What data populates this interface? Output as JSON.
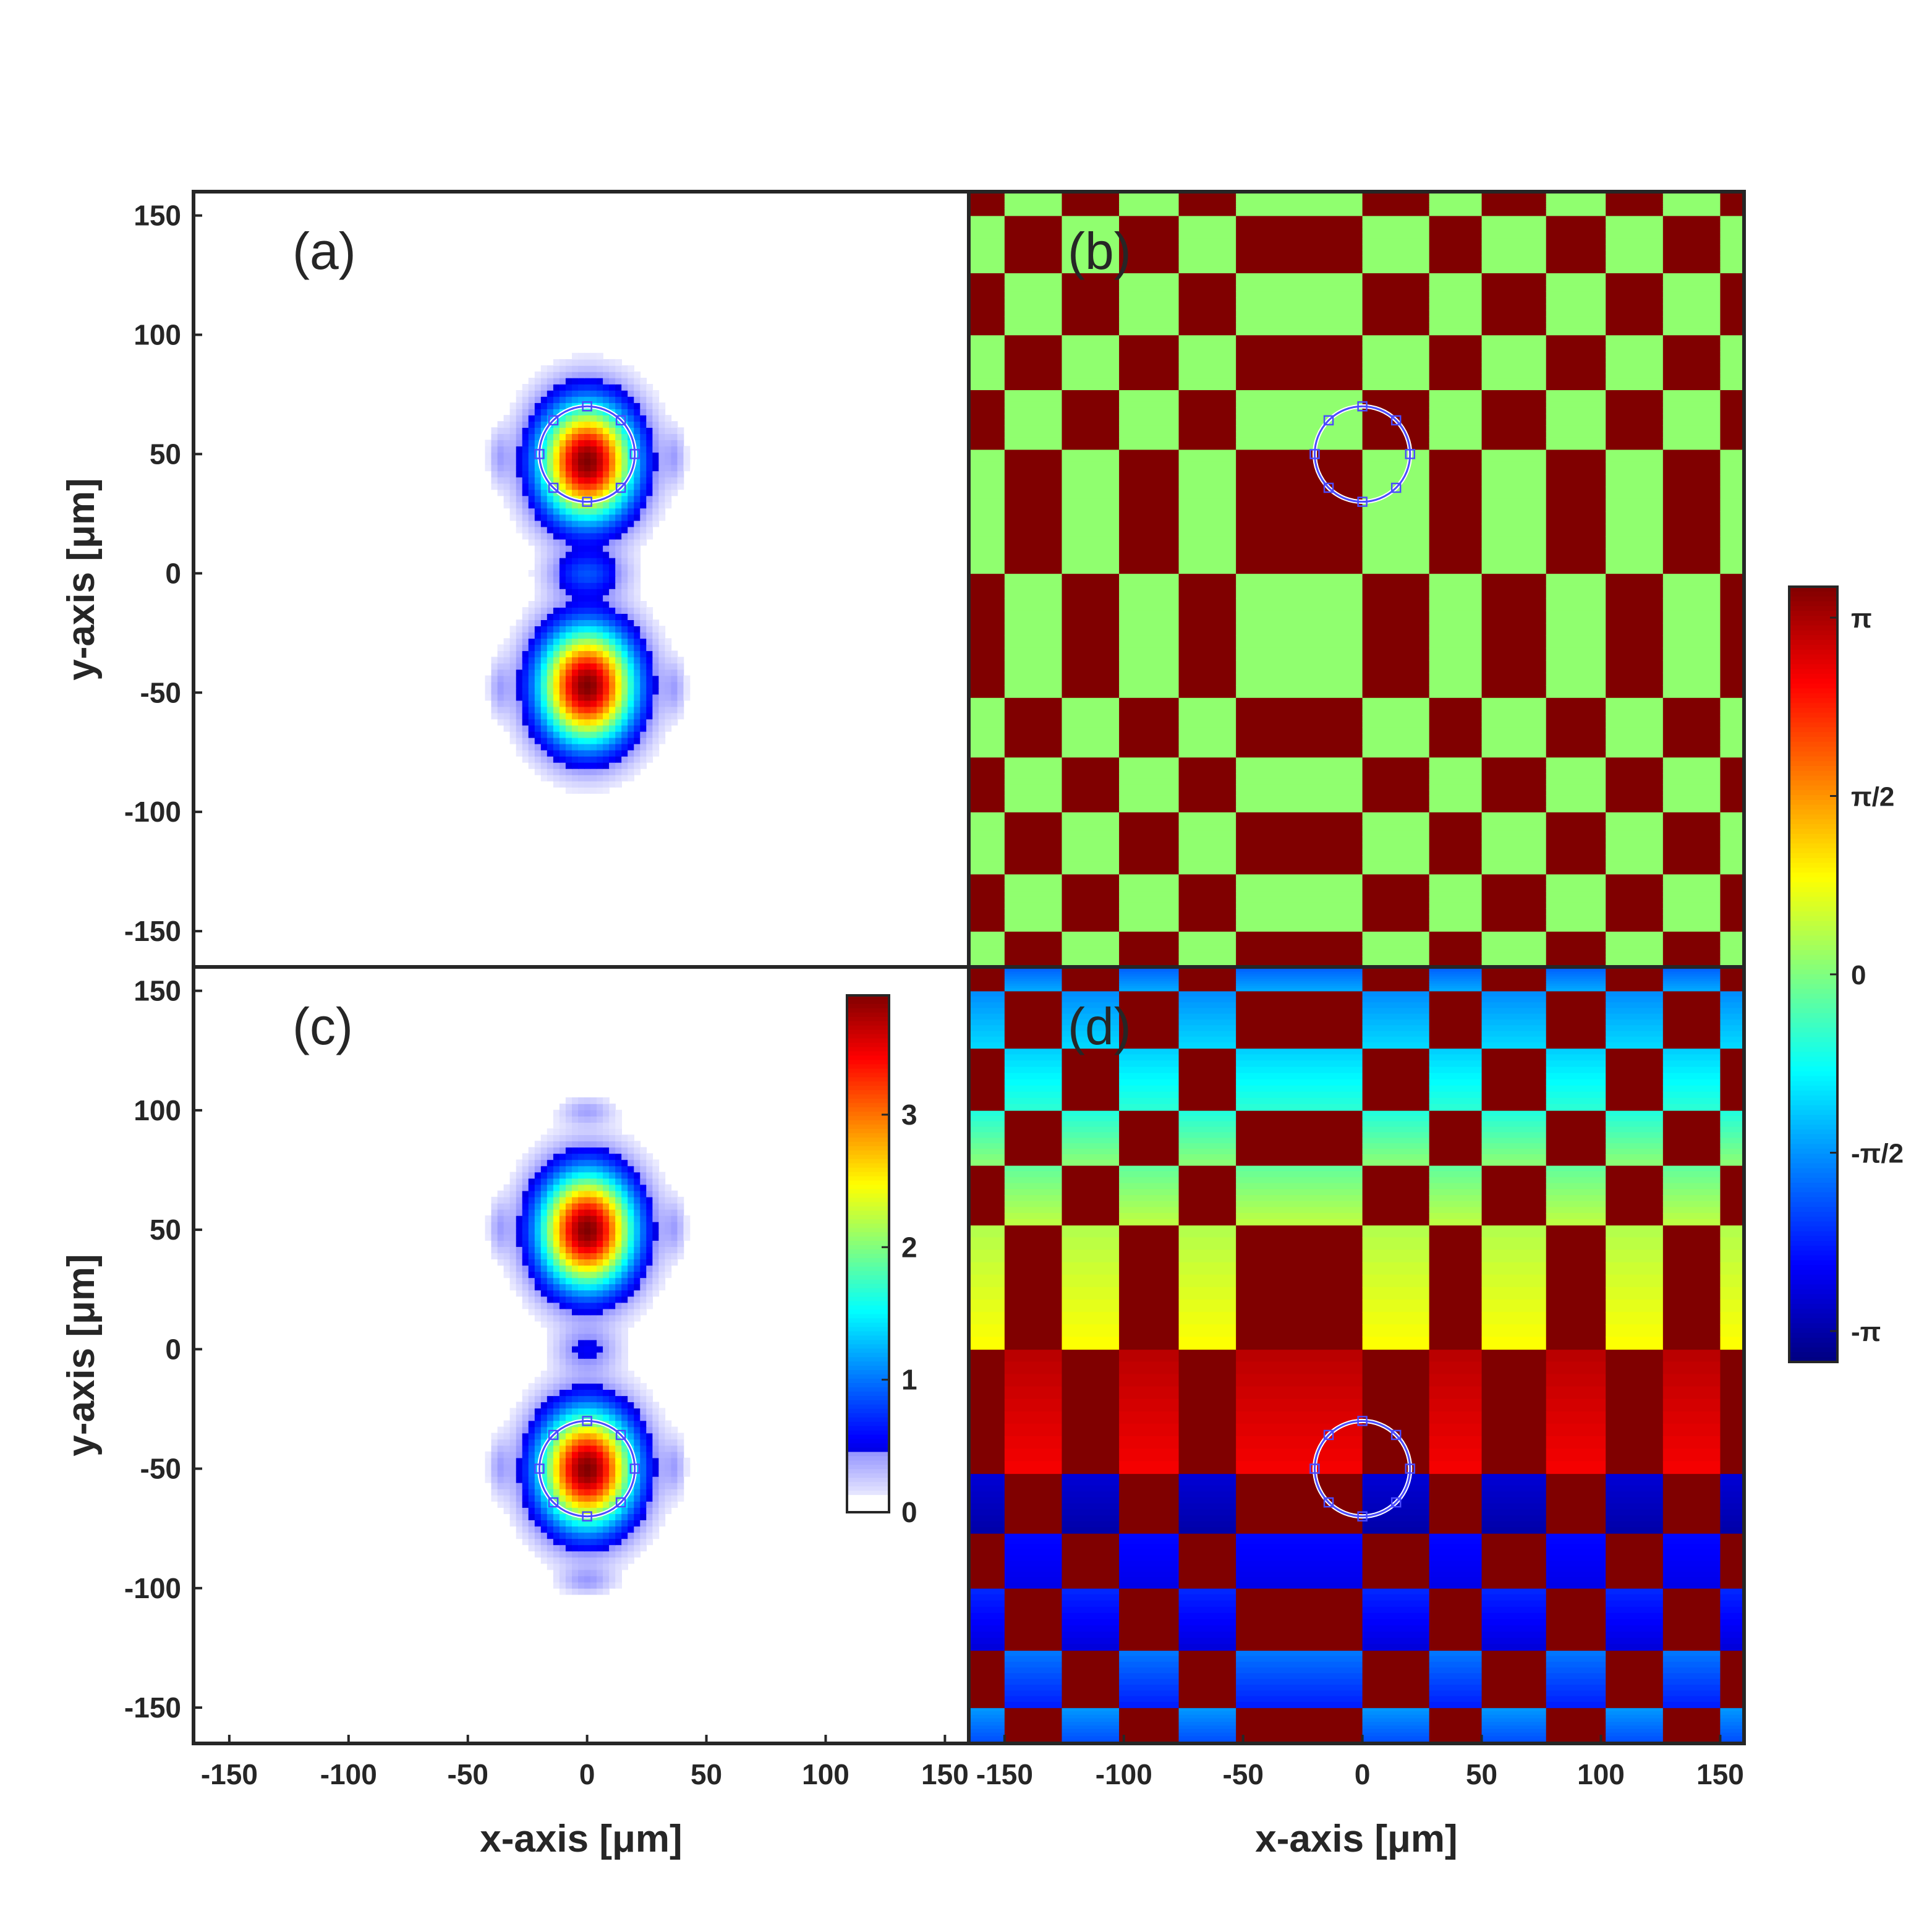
{
  "chart_data": [
    {
      "panel": "(a)",
      "type": "heatmap",
      "quantity": "intensity",
      "xlabel": "",
      "ylabel": "y-axis [μm]",
      "xlim": [
        -165,
        160
      ],
      "ylim": [
        -165,
        160
      ],
      "xticks": [],
      "yticks": [
        "-150",
        "-100",
        "-50",
        "0",
        "50",
        "100",
        "150"
      ],
      "colorscale": "jet",
      "blobs": [
        {
          "x": 0,
          "y": 47,
          "sx": 14,
          "sy": 17,
          "peak": 3.9
        },
        {
          "x": 0,
          "y": -47,
          "sx": 14,
          "sy": 17,
          "peak": 3.9
        },
        {
          "x": 0,
          "y": 0,
          "sx": 11,
          "sy": 6,
          "peak": 0.7
        },
        {
          "x": -37,
          "y": 49,
          "sx": 3,
          "sy": 8,
          "peak": 0.3
        },
        {
          "x": 37,
          "y": 49,
          "sx": 3,
          "sy": 8,
          "peak": 0.3
        },
        {
          "x": -37,
          "y": -48,
          "sx": 3,
          "sy": 8,
          "peak": 0.3
        },
        {
          "x": 37,
          "y": -48,
          "sx": 3,
          "sy": 8,
          "peak": 0.3
        }
      ],
      "ring": {
        "x": 0,
        "y": 50,
        "r": 20
      }
    },
    {
      "panel": "(b)",
      "type": "heatmap",
      "quantity": "phase",
      "colorscale": "jet",
      "xlim": [
        -165,
        160
      ],
      "ylim": [
        -165,
        160
      ],
      "x_boundaries": [
        -150,
        -126,
        -102,
        -77,
        -53,
        0,
        28,
        50,
        77,
        102,
        126,
        150
      ],
      "y_boundaries": [
        -150,
        -126,
        -100,
        -77,
        -52,
        0,
        52,
        77,
        100,
        126,
        150
      ],
      "cell_phases": {
        "even": 0.1,
        "odd": 3.14
      },
      "ring": {
        "x": 0,
        "y": 50,
        "r": 20
      }
    },
    {
      "panel": "(c)",
      "type": "heatmap",
      "quantity": "intensity",
      "xlabel": "x-axis [μm]",
      "ylabel": "y-axis [μm]",
      "xlim": [
        -165,
        160
      ],
      "ylim": [
        -165,
        160
      ],
      "xticks": [
        "-150",
        "-100",
        "-50",
        "0",
        "50",
        "100",
        "150"
      ],
      "yticks": [
        "-150",
        "-100",
        "-50",
        "0",
        "50",
        "100",
        "150"
      ],
      "colorscale": "jet",
      "blobs": [
        {
          "x": 0,
          "y": 50,
          "sx": 14,
          "sy": 17,
          "peak": 3.9
        },
        {
          "x": 0,
          "y": -50,
          "sx": 14,
          "sy": 17,
          "peak": 3.9
        },
        {
          "x": 0,
          "y": 0,
          "sx": 9,
          "sy": 6,
          "peak": 0.45
        },
        {
          "x": 0,
          "y": 100,
          "sx": 8,
          "sy": 4,
          "peak": 0.35
        },
        {
          "x": 0,
          "y": -97,
          "sx": 8,
          "sy": 4,
          "peak": 0.35
        },
        {
          "x": -37,
          "y": 51,
          "sx": 3,
          "sy": 8,
          "peak": 0.3
        },
        {
          "x": 37,
          "y": 51,
          "sx": 3,
          "sy": 8,
          "peak": 0.3
        },
        {
          "x": -37,
          "y": -49,
          "sx": 3,
          "sy": 8,
          "peak": 0.3
        },
        {
          "x": 37,
          "y": -49,
          "sx": 3,
          "sy": 8,
          "peak": 0.3
        }
      ],
      "ring": {
        "x": 0,
        "y": -50,
        "r": 20
      },
      "colorbar": {
        "min": 0,
        "max": 3.9,
        "ticks": [
          "0",
          "1",
          "2",
          "3"
        ],
        "tick_values": [
          0,
          1,
          2,
          3
        ]
      }
    },
    {
      "panel": "(d)",
      "type": "heatmap",
      "quantity": "phase",
      "xlabel": "x-axis [μm]",
      "ylabel": "",
      "xlim": [
        -165,
        160
      ],
      "ylim": [
        -165,
        160
      ],
      "xticks": [
        "-150",
        "-100",
        "-50",
        "0",
        "50",
        "100",
        "150"
      ],
      "colorscale": "jet",
      "x_boundaries": [
        -150,
        -126,
        -102,
        -77,
        -53,
        0,
        28,
        50,
        77,
        102,
        126,
        150
      ],
      "y_boundaries": [
        -150,
        -126,
        -100,
        -77,
        -52,
        0,
        52,
        77,
        100,
        126,
        150
      ],
      "row_phase_ranges": [
        [
          -1.4,
          -1.9
        ],
        [
          -1.6,
          -2.2
        ],
        [
          -2.1,
          -2.6
        ],
        [
          -2.3,
          -2.5
        ],
        [
          -2.6,
          -2.9
        ],
        [
          2.8,
          2.4
        ],
        [
          0.3,
          0.8
        ],
        [
          -0.2,
          0.4
        ],
        [
          -0.6,
          0.1
        ],
        [
          -1.1,
          -0.5
        ],
        [
          -1.5,
          -1.0
        ],
        [
          -1.8,
          -1.3
        ]
      ],
      "odd_phase": 3.14,
      "ring": {
        "x": 0,
        "y": -50,
        "r": 20
      }
    }
  ],
  "phase_colorbar": {
    "min": -3.14159,
    "max": 3.14159,
    "ticks": [
      "π",
      "π/2",
      "0",
      "-π/2",
      "-π"
    ],
    "tick_values": [
      3.14159,
      1.5708,
      0,
      -1.5708,
      -3.14159
    ]
  },
  "colors": {
    "axis": "#262626",
    "ring": "#4b4bff"
  }
}
